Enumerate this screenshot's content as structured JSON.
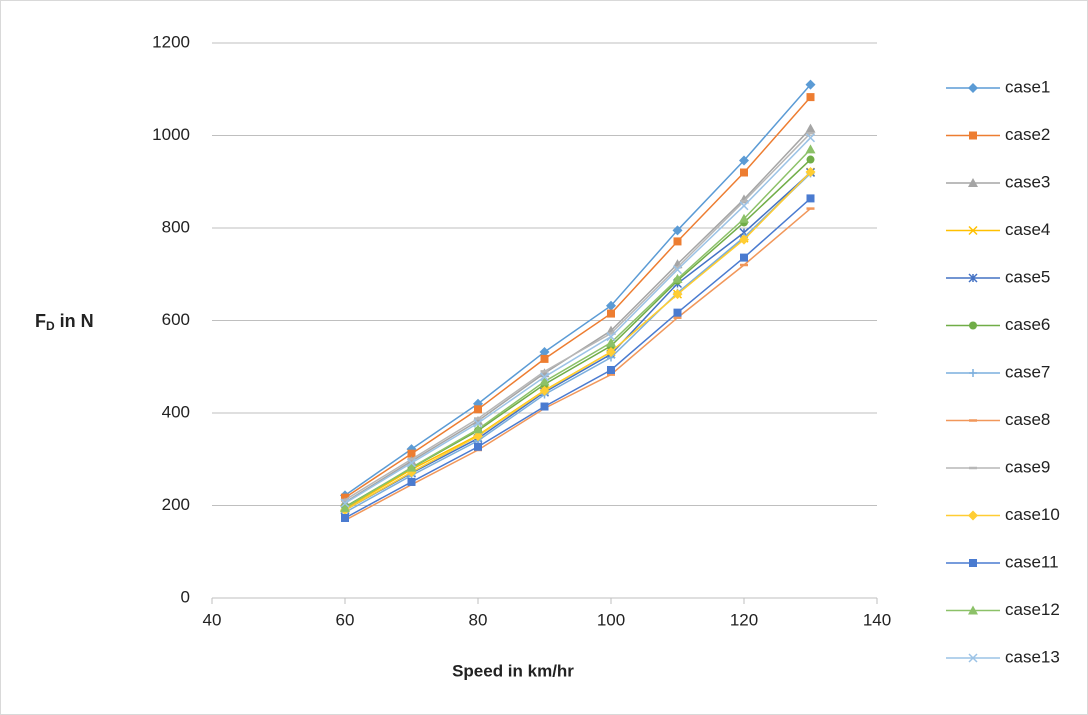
{
  "chart_data": {
    "type": "line",
    "xlabel": "Speed in km/hr",
    "ylabel": {
      "main": "F",
      "sub": "D",
      "rest": " in N"
    },
    "x": [
      60,
      70,
      80,
      90,
      100,
      110,
      120,
      130
    ],
    "xlim": [
      40,
      140
    ],
    "xticks": [
      40,
      60,
      80,
      100,
      120,
      140
    ],
    "ylim": [
      0,
      1200
    ],
    "yticks": [
      0,
      200,
      400,
      600,
      800,
      1000,
      1200
    ],
    "grid": true,
    "legend": "right",
    "series": [
      {
        "name": "case1",
        "color": "#5b9bd5",
        "marker": "diamond",
        "values": [
          222,
          322,
          420,
          532,
          632,
          795,
          946,
          1110
        ]
      },
      {
        "name": "case2",
        "color": "#ed7d31",
        "marker": "square",
        "values": [
          217,
          312,
          408,
          517,
          615,
          771,
          920,
          1083
        ]
      },
      {
        "name": "case3",
        "color": "#a5a5a5",
        "marker": "triangle",
        "values": [
          207,
          296,
          383,
          486,
          578,
          722,
          862,
          1015
        ]
      },
      {
        "name": "case4",
        "color": "#ffc000",
        "marker": "x",
        "values": [
          193,
          278,
          352,
          449,
          532,
          657,
          778,
          921
        ]
      },
      {
        "name": "case5",
        "color": "#4472c4",
        "marker": "star",
        "values": [
          190,
          270,
          345,
          445,
          527,
          680,
          790,
          920
        ]
      },
      {
        "name": "case6",
        "color": "#70ad47",
        "marker": "circle",
        "values": [
          197,
          281,
          362,
          462,
          545,
          686,
          812,
          948
        ]
      },
      {
        "name": "case7",
        "color": "#7cafdd",
        "marker": "plus",
        "values": [
          185,
          265,
          340,
          440,
          520,
          660,
          780,
          918
        ]
      },
      {
        "name": "case8",
        "color": "#f1975a",
        "marker": "dash",
        "values": [
          168,
          245,
          320,
          410,
          483,
          606,
          720,
          842
        ]
      },
      {
        "name": "case9",
        "color": "#b7b7b7",
        "marker": "dash",
        "values": [
          212,
          300,
          388,
          490,
          572,
          715,
          858,
          1005
        ]
      },
      {
        "name": "case10",
        "color": "#ffcd33",
        "marker": "diamond",
        "values": [
          190,
          272,
          350,
          448,
          532,
          657,
          775,
          921
        ]
      },
      {
        "name": "case11",
        "color": "#4a7bd0",
        "marker": "square",
        "values": [
          173,
          251,
          327,
          414,
          493,
          617,
          736,
          864
        ]
      },
      {
        "name": "case12",
        "color": "#8cc168",
        "marker": "triangle",
        "values": [
          195,
          282,
          365,
          468,
          552,
          690,
          820,
          970
        ]
      },
      {
        "name": "case13",
        "color": "#9cc3e6",
        "marker": "x",
        "values": [
          205,
          292,
          378,
          478,
          565,
          710,
          848,
          995
        ]
      }
    ]
  }
}
